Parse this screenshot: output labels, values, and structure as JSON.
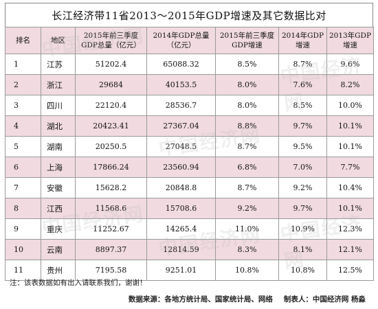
{
  "title": "长江经济带11省2013～2015年GDP增速及其它数据比对",
  "headers": [
    "排名",
    "地区",
    "2015年前三季度GDP总量（亿元）",
    "2014年GDP总量（亿元）",
    "2015年前三季度GDP增速",
    "2014年GDP增速",
    "2013年GDP增速"
  ],
  "rows": [
    [
      "1",
      "江苏",
      "51202.4",
      "65088.32",
      "8.5%",
      "8.7%",
      "9.6%"
    ],
    [
      "2",
      "浙江",
      "29684",
      "40153.5",
      "8.0%",
      "7.6%",
      "8.2%"
    ],
    [
      "3",
      "四川",
      "22120.4",
      "28536.7",
      "8.0%",
      "8.5%",
      "10.0%"
    ],
    [
      "4",
      "湖北",
      "20423.41",
      "27367.04",
      "8.8%",
      "9.7%",
      "10.1%"
    ],
    [
      "5",
      "湖南",
      "20250.5",
      "27048.5",
      "8.7%",
      "9.5%",
      "10.1%"
    ],
    [
      "6",
      "上海",
      "17866.24",
      "23560.94",
      "6.8%",
      "7.0%",
      "7.7%"
    ],
    [
      "7",
      "安徽",
      "15628.2",
      "20848.8",
      "8.7%",
      "9.2%",
      "10.4%"
    ],
    [
      "8",
      "江西",
      "11568.6",
      "15708.6",
      "9.2%",
      "9.7%",
      "10.1%"
    ],
    [
      "9",
      "重庆",
      "11252.67",
      "14265.4",
      "11.0%",
      "10.9%",
      "12.3%"
    ],
    [
      "10",
      "云南",
      "8897.37",
      "12814.59",
      "8.3%",
      "8.1%",
      "12.1%"
    ],
    [
      "11",
      "贵州",
      "7195.58",
      "9251.01",
      "10.8%",
      "10.8%",
      "12.5%"
    ]
  ],
  "note": "注：该表数据如有出入请联系我们，谢谢！",
  "source": {
    "data_source": "数据来源：各地方统计局、国家统计局、网络",
    "author": "制表人：中国经济网 杨淼"
  },
  "watermark_text": "中国经济网",
  "colors": {
    "header_bg": "#f1dbe0",
    "stripe_bg": "#f1dbe0",
    "border": "#999999"
  }
}
